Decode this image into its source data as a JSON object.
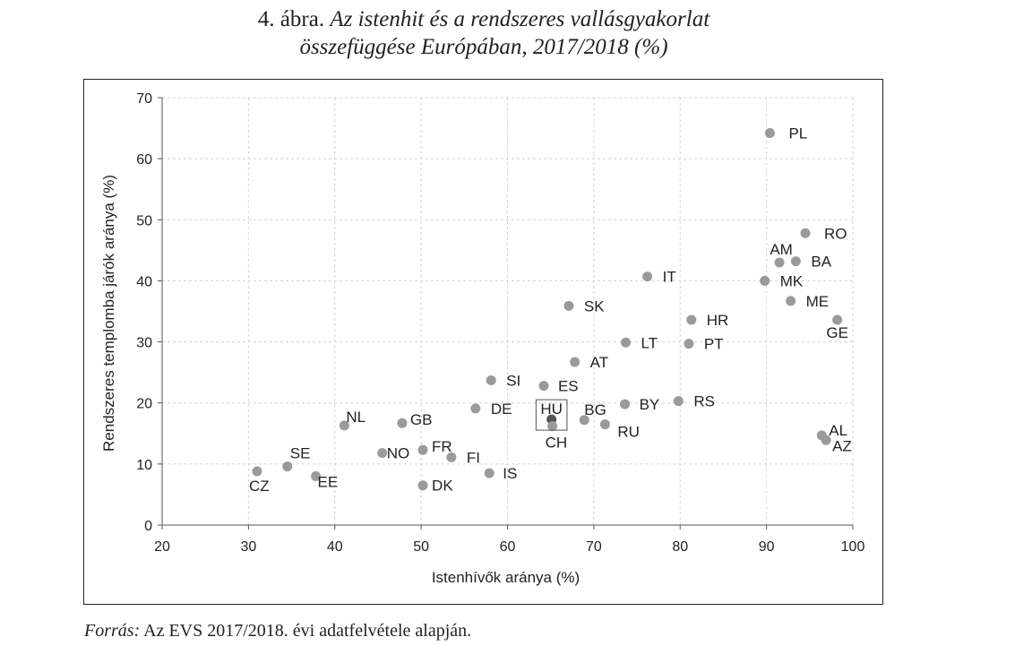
{
  "figure": {
    "number": "4. ábra.",
    "title_line1": "Az istenhit és a rendszeres vallásgyakorlat",
    "title_line2": "összefüggése Európában, 2017/2018 (%)"
  },
  "source": {
    "label": "Forrás:",
    "text": "Az EVS 2017/2018. évi adatfelvétele alapján."
  },
  "chart_data": {
    "type": "scatter",
    "xlabel": "Istenhívők aránya (%)",
    "ylabel": "Rendszeres templomba járók aránya (%)",
    "xlim": [
      20,
      100
    ],
    "ylim": [
      0,
      70
    ],
    "xticks": [
      20,
      30,
      40,
      50,
      60,
      70,
      80,
      90,
      100
    ],
    "yticks": [
      0,
      10,
      20,
      30,
      40,
      50,
      60,
      70
    ],
    "grid": true,
    "marker_color": "#9a9a9a",
    "highlight_color": "#555555",
    "points": [
      {
        "label": "PL",
        "x": 90.4,
        "y": 64.2
      },
      {
        "label": "RO",
        "x": 94.5,
        "y": 47.8
      },
      {
        "label": "AM",
        "x": 91.5,
        "y": 43.0
      },
      {
        "label": "BA",
        "x": 93.4,
        "y": 43.2
      },
      {
        "label": "MK",
        "x": 89.8,
        "y": 40.0
      },
      {
        "label": "ME",
        "x": 92.8,
        "y": 36.7
      },
      {
        "label": "GE",
        "x": 98.2,
        "y": 33.6
      },
      {
        "label": "IT",
        "x": 76.2,
        "y": 40.7
      },
      {
        "label": "HR",
        "x": 81.3,
        "y": 33.6
      },
      {
        "label": "PT",
        "x": 81.0,
        "y": 29.7
      },
      {
        "label": "SK",
        "x": 67.1,
        "y": 35.9
      },
      {
        "label": "LT",
        "x": 73.7,
        "y": 29.9
      },
      {
        "label": "AT",
        "x": 67.8,
        "y": 26.7
      },
      {
        "label": "SI",
        "x": 58.1,
        "y": 23.7
      },
      {
        "label": "ES",
        "x": 64.2,
        "y": 22.8
      },
      {
        "label": "BG",
        "x": 68.9,
        "y": 17.2
      },
      {
        "label": "BY",
        "x": 73.6,
        "y": 19.8
      },
      {
        "label": "RS",
        "x": 79.8,
        "y": 20.3
      },
      {
        "label": "HU",
        "x": 65.1,
        "y": 17.3,
        "highlight": true
      },
      {
        "label": "CH",
        "x": 65.2,
        "y": 16.2
      },
      {
        "label": "RU",
        "x": 71.3,
        "y": 16.5
      },
      {
        "label": "DE",
        "x": 56.3,
        "y": 19.1
      },
      {
        "label": "NL",
        "x": 41.1,
        "y": 16.3
      },
      {
        "label": "GB",
        "x": 47.8,
        "y": 16.7
      },
      {
        "label": "FR",
        "x": 50.2,
        "y": 12.3
      },
      {
        "label": "NO",
        "x": 45.5,
        "y": 11.8
      },
      {
        "label": "FI",
        "x": 53.5,
        "y": 11.1
      },
      {
        "label": "IS",
        "x": 57.9,
        "y": 8.5
      },
      {
        "label": "DK",
        "x": 50.2,
        "y": 6.5
      },
      {
        "label": "SE",
        "x": 34.5,
        "y": 9.6
      },
      {
        "label": "CZ",
        "x": 31.0,
        "y": 8.8
      },
      {
        "label": "EE",
        "x": 37.8,
        "y": 8.0
      },
      {
        "label": "AL",
        "x": 96.4,
        "y": 14.7
      },
      {
        "label": "AZ",
        "x": 96.9,
        "y": 13.9
      }
    ]
  }
}
